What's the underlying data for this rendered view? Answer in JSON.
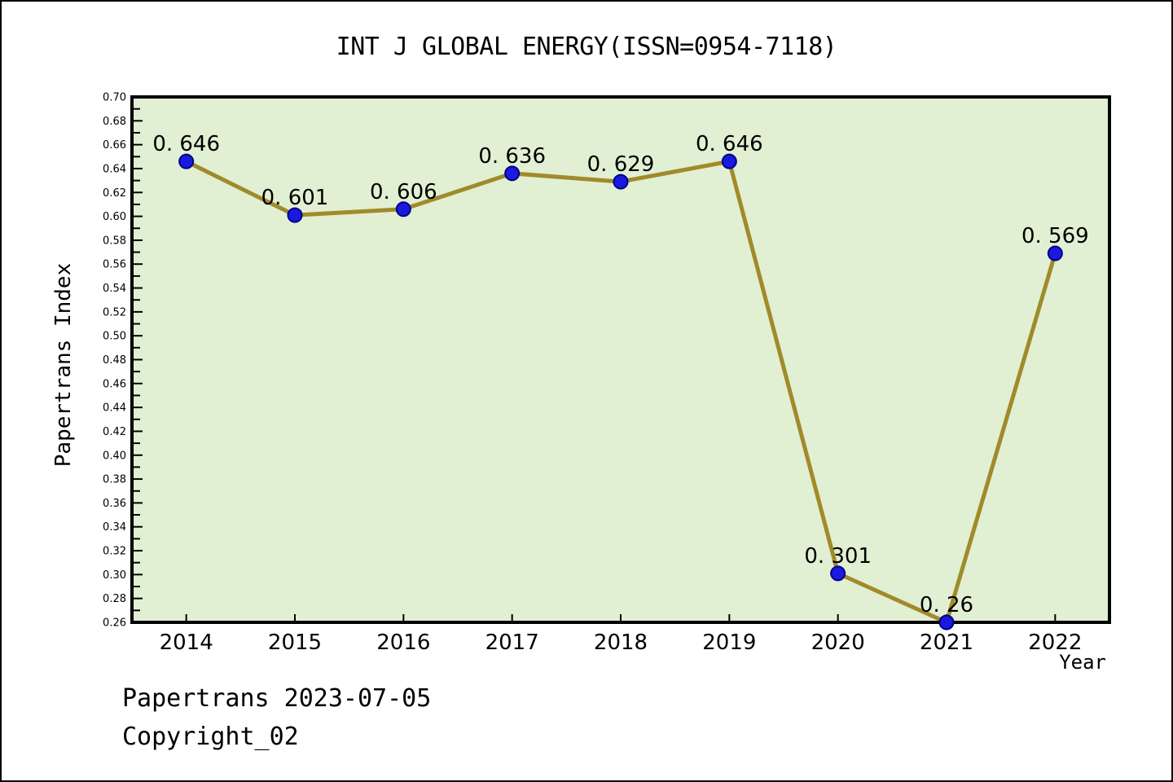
{
  "title": "INT J GLOBAL ENERGY(ISSN=0954-7118)",
  "footer": {
    "source_line": "Papertrans 2023-07-05",
    "copyright_line": "Copyright_02"
  },
  "chart_data": {
    "type": "line",
    "title": "INT J GLOBAL ENERGY(ISSN=0954-7118)",
    "xlabel": "Year",
    "ylabel": "Papertrans Index",
    "x": [
      2014,
      2015,
      2016,
      2017,
      2018,
      2019,
      2020,
      2021,
      2022
    ],
    "series": [
      {
        "name": "Papertrans Index",
        "values": [
          0.646,
          0.601,
          0.606,
          0.636,
          0.629,
          0.646,
          0.301,
          0.26,
          0.569
        ]
      }
    ],
    "point_labels": [
      "0. 646",
      "0. 601",
      "0. 606",
      "0. 636",
      "0. 629",
      "0. 646",
      "0. 301",
      "0. 26",
      "0. 569"
    ],
    "ylim": [
      0.26,
      0.7
    ],
    "ytick_major_step": 0.02,
    "ytick_minor_step": 0.01,
    "xlim_padding_categories": 0.5,
    "grid": false,
    "legend": "none",
    "colors": {
      "line": "#A08A2A",
      "marker_fill": "#1A1ADC",
      "marker_edge": "#00008B",
      "plot_bg": "#E1EFD3",
      "frame": "#000000",
      "tick": "#000000",
      "text": "#000000",
      "page_bg": "#FFFFFF"
    }
  }
}
